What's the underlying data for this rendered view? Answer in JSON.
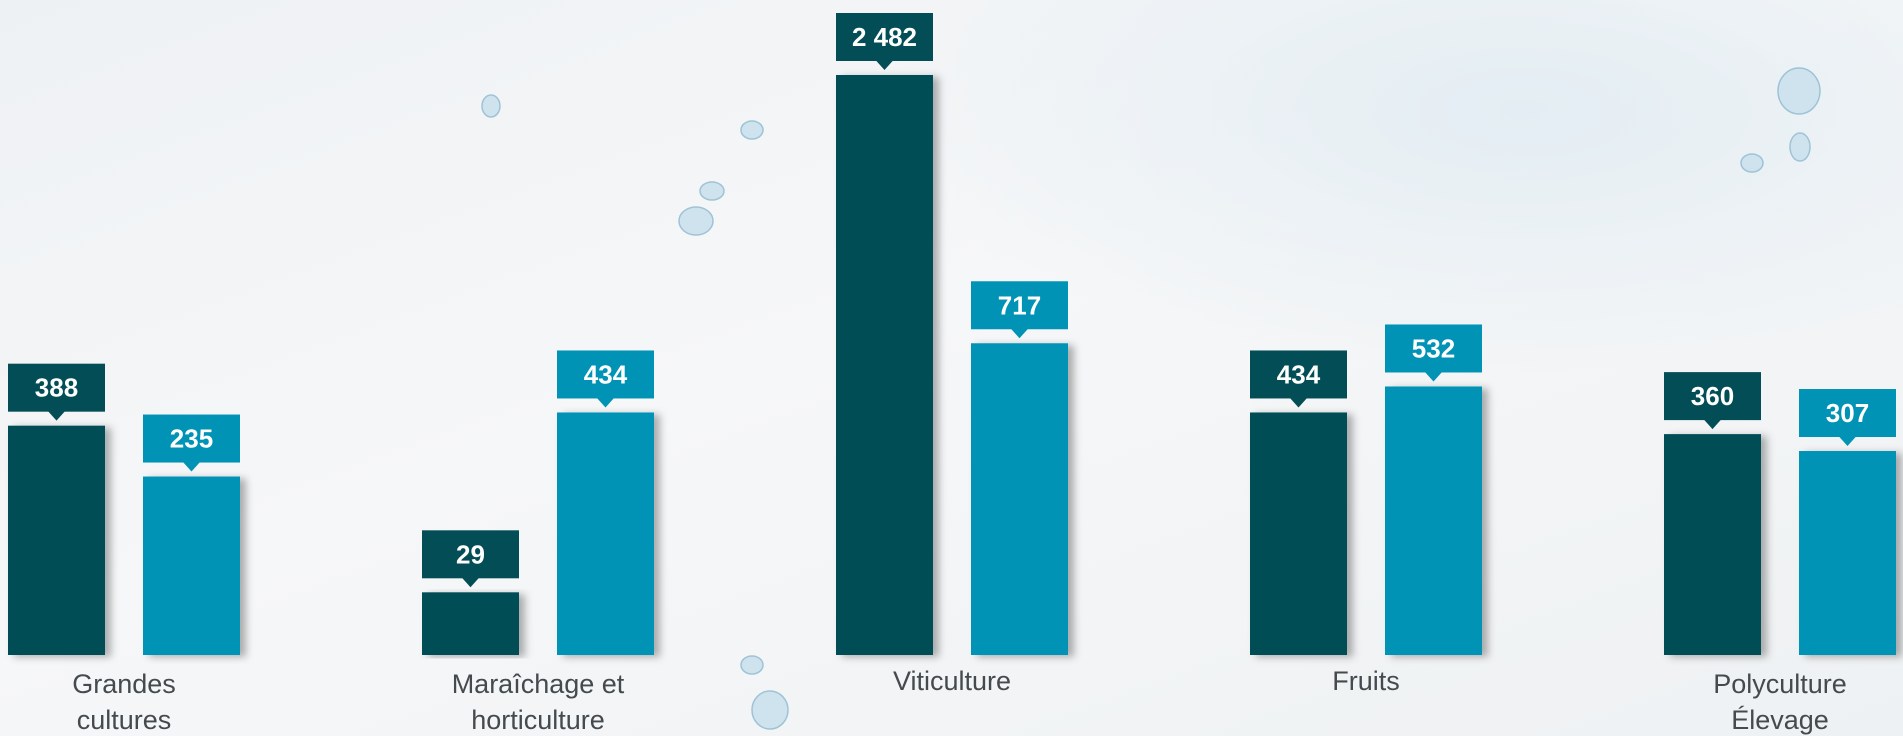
{
  "chart_data": {
    "type": "bar",
    "categories": [
      "Grandes cultures",
      "Maraîchage et horticulture",
      "Viticulture",
      "Fruits",
      "Polyculture Élevage"
    ],
    "series": [
      {
        "color": "#034e56",
        "values": [
          388,
          29,
          2482,
          434,
          360
        ],
        "value_labels": [
          "388",
          "29",
          "2 482",
          "434",
          "360"
        ]
      },
      {
        "color": "#0093b6",
        "values": [
          235,
          434,
          717,
          532,
          307
        ],
        "value_labels": [
          "235",
          "434",
          "717",
          "532",
          "307"
        ]
      }
    ]
  }
}
